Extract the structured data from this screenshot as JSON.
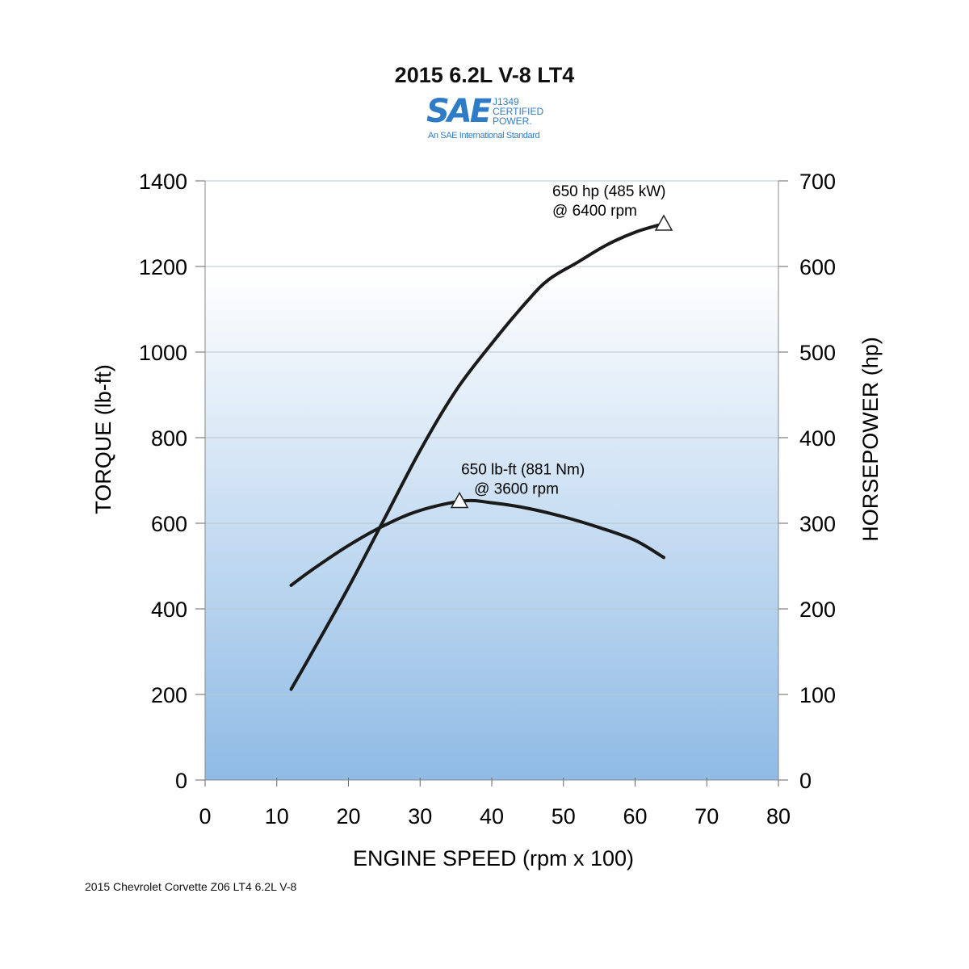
{
  "logo": {
    "main": "SAE",
    "side_lines": [
      "J1349",
      "CERTIFIED",
      "POWER."
    ],
    "sub": "An SAE International Standard"
  },
  "footnote": "2015 Chevrolet Corvette Z06 LT4 6.2L V-8",
  "colors": {
    "gradient_top": "#ffffff",
    "gradient_bottom": "#8fbbe5",
    "curve": "#1a1a1a",
    "grid": "#b8c4d0",
    "logo": "#2f7cc6"
  },
  "chart_data": {
    "type": "line",
    "title": "2015 6.2L V-8 LT4",
    "xlabel": "ENGINE SPEED (rpm x 100)",
    "ylabel_left": "TORQUE (lb-ft)",
    "ylabel_right": "HORSEPOWER (hp)",
    "xlim": [
      0,
      80
    ],
    "ylim_left": [
      0,
      1400
    ],
    "ylim_right": [
      0,
      700
    ],
    "x_ticks": [
      0,
      10,
      20,
      30,
      40,
      50,
      60,
      70,
      80
    ],
    "y_ticks_left": [
      0,
      200,
      400,
      600,
      800,
      1000,
      1200,
      1400
    ],
    "y_ticks_right": [
      0,
      100,
      200,
      300,
      400,
      500,
      600,
      700
    ],
    "grid": true,
    "background": "vertical gradient white to light blue",
    "series": [
      {
        "axis": "left",
        "x": [
          12,
          15,
          20,
          25,
          30,
          36,
          40,
          45,
          50,
          55,
          60,
          64
        ],
        "y": [
          455,
          492,
          548,
          595,
          630,
          652,
          648,
          635,
          615,
          590,
          560,
          520
        ]
      },
      {
        "axis": "right",
        "x": [
          12,
          15,
          20,
          25,
          30,
          35,
          40,
          45,
          48,
          52,
          56,
          60,
          64
        ],
        "y": [
          106,
          150,
          225,
          305,
          385,
          455,
          510,
          560,
          585,
          605,
          625,
          640,
          650
        ]
      }
    ],
    "annotations": [
      {
        "axis": "left",
        "x": 35.5,
        "y": 652,
        "marker": "triangle",
        "lines": [
          "650 lb-ft (881 Nm)",
          "@ 3600 rpm"
        ]
      },
      {
        "axis": "right",
        "x": 64,
        "y": 650,
        "marker": "triangle",
        "lines": [
          "650 hp (485 kW)",
          "@ 6400 rpm"
        ]
      }
    ]
  }
}
